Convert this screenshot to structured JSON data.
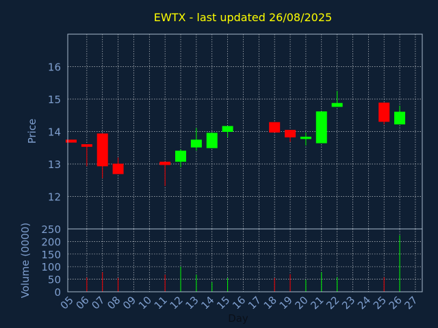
{
  "title": "EWTX - last updated 26/08/2025",
  "colors": {
    "background": "#0f1f33",
    "title": "#ffff00",
    "axis_text": "#7f9fcf",
    "frame": "#aabbcc",
    "grid": "#ffffff",
    "up": "#00ff00",
    "down": "#ff0000"
  },
  "chart_data": [
    {
      "type": "candlestick",
      "title": "EWTX - last updated 26/08/2025",
      "ylabel": "Price",
      "ylim": [
        11,
        17
      ],
      "yticks": [
        12,
        13,
        14,
        15,
        16
      ],
      "grid": true,
      "x_categories": [
        "05",
        "06",
        "07",
        "08",
        "09",
        "10",
        "11",
        "12",
        "13",
        "14",
        "15",
        "16",
        "17",
        "18",
        "19",
        "20",
        "21",
        "22",
        "23",
        "24",
        "25",
        "26",
        "27"
      ],
      "candles": [
        {
          "day": "05",
          "open": 13.75,
          "close": 13.66,
          "high": 13.75,
          "low": 13.66
        },
        {
          "day": "06",
          "open": 13.61,
          "close": 13.53,
          "high": 13.61,
          "low": 12.93
        },
        {
          "day": "07",
          "open": 13.94,
          "close": 12.93,
          "high": 13.94,
          "low": 12.56
        },
        {
          "day": "08",
          "open": 13.01,
          "close": 12.69,
          "high": 13.2,
          "low": 12.69
        },
        {
          "day": "11",
          "open": 13.07,
          "close": 12.97,
          "high": 13.07,
          "low": 12.32
        },
        {
          "day": "12",
          "open": 13.07,
          "close": 13.41,
          "high": 13.45,
          "low": 12.9
        },
        {
          "day": "13",
          "open": 13.51,
          "close": 13.75,
          "high": 14.11,
          "low": 13.41
        },
        {
          "day": "14",
          "open": 13.49,
          "close": 13.96,
          "high": 13.96,
          "low": 13.49
        },
        {
          "day": "15",
          "open": 13.99,
          "close": 14.17,
          "high": 14.17,
          "low": 13.82
        },
        {
          "day": "18",
          "open": 14.29,
          "close": 13.97,
          "high": 14.29,
          "low": 13.97
        },
        {
          "day": "19",
          "open": 14.05,
          "close": 13.82,
          "high": 14.05,
          "low": 13.68
        },
        {
          "day": "20",
          "open": 13.77,
          "close": 13.84,
          "high": 13.97,
          "low": 13.57
        },
        {
          "day": "21",
          "open": 13.64,
          "close": 14.62,
          "high": 14.62,
          "low": 13.64
        },
        {
          "day": "22",
          "open": 14.76,
          "close": 14.88,
          "high": 15.25,
          "low": 14.76
        },
        {
          "day": "25",
          "open": 14.89,
          "close": 14.3,
          "high": 14.89,
          "low": 14.22
        },
        {
          "day": "26",
          "open": 14.22,
          "close": 14.61,
          "high": 14.8,
          "low": 14.22
        }
      ]
    },
    {
      "type": "bar",
      "ylabel": "Volume (0000)",
      "xlabel": "Day",
      "ylim": [
        0,
        250
      ],
      "yticks": [
        0,
        50,
        100,
        150,
        200,
        250
      ],
      "grid": true,
      "x_categories": [
        "05",
        "06",
        "07",
        "08",
        "09",
        "10",
        "11",
        "12",
        "13",
        "14",
        "15",
        "16",
        "17",
        "18",
        "19",
        "20",
        "21",
        "22",
        "23",
        "24",
        "25",
        "26",
        "27"
      ],
      "bars": [
        {
          "day": "06",
          "value": 57,
          "direction": "down"
        },
        {
          "day": "07",
          "value": 78,
          "direction": "down"
        },
        {
          "day": "08",
          "value": 55,
          "direction": "down"
        },
        {
          "day": "11",
          "value": 68,
          "direction": "down"
        },
        {
          "day": "12",
          "value": 100,
          "direction": "up"
        },
        {
          "day": "13",
          "value": 68,
          "direction": "up"
        },
        {
          "day": "14",
          "value": 38,
          "direction": "up"
        },
        {
          "day": "15",
          "value": 55,
          "direction": "up"
        },
        {
          "day": "18",
          "value": 55,
          "direction": "down"
        },
        {
          "day": "19",
          "value": 70,
          "direction": "down"
        },
        {
          "day": "20",
          "value": 48,
          "direction": "up"
        },
        {
          "day": "21",
          "value": 78,
          "direction": "up"
        },
        {
          "day": "22",
          "value": 58,
          "direction": "up"
        },
        {
          "day": "25",
          "value": 58,
          "direction": "down"
        },
        {
          "day": "26",
          "value": 225,
          "direction": "up"
        }
      ]
    }
  ]
}
